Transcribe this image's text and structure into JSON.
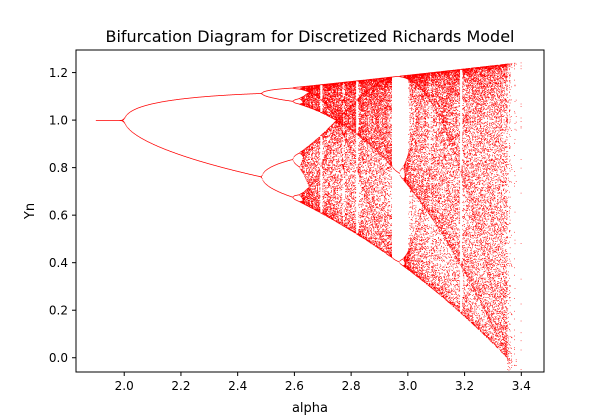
{
  "chart_data": {
    "type": "scatter",
    "title": "Bifurcation Diagram for Discretized Richards Model",
    "xlabel": "alpha",
    "ylabel": "Yn",
    "xlim": [
      1.83,
      3.48
    ],
    "ylim": [
      -0.06,
      1.295
    ],
    "xticks": [
      2.0,
      2.2,
      2.4,
      2.6,
      2.8,
      3.0,
      3.2,
      3.4
    ],
    "xtick_labels": [
      "2.0",
      "2.2",
      "2.4",
      "2.6",
      "2.8",
      "3.0",
      "3.2",
      "3.4"
    ],
    "yticks": [
      0.0,
      0.2,
      0.4,
      0.6,
      0.8,
      1.0,
      1.2
    ],
    "ytick_labels": [
      "0.0",
      "0.2",
      "0.4",
      "0.6",
      "0.8",
      "1.0",
      "1.2"
    ],
    "alpha_range": [
      1.9,
      3.4
    ],
    "point_color": "#ff0000",
    "grid": false,
    "legend": "none",
    "series": [
      {
        "values_summary": [
          {
            "alpha": 1.9,
            "y": [
              1.0
            ]
          },
          {
            "alpha": 2.0,
            "y": [
              1.0
            ]
          },
          {
            "alpha": 2.2,
            "y": [
              1.12,
              0.87
            ]
          },
          {
            "alpha": 2.4,
            "y": [
              1.16,
              0.78
            ]
          },
          {
            "alpha": 2.5,
            "y": [
              1.13,
              1.15,
              0.7,
              0.77
            ]
          },
          {
            "alpha": 2.6,
            "y": [
              1.15,
              1.11,
              0.84,
              0.65
            ]
          },
          {
            "alpha": 2.7,
            "y_range": [
              0.62,
              1.17
            ]
          },
          {
            "alpha": 2.8,
            "y_range": [
              0.53,
              1.18
            ]
          },
          {
            "alpha": 3.0,
            "y_range": [
              0.36,
              1.2
            ]
          },
          {
            "alpha": 3.2,
            "y_range": [
              0.18,
              1.21
            ]
          },
          {
            "alpha": 3.4,
            "y_range": [
              0.0,
              1.23
            ]
          }
        ]
      }
    ]
  }
}
